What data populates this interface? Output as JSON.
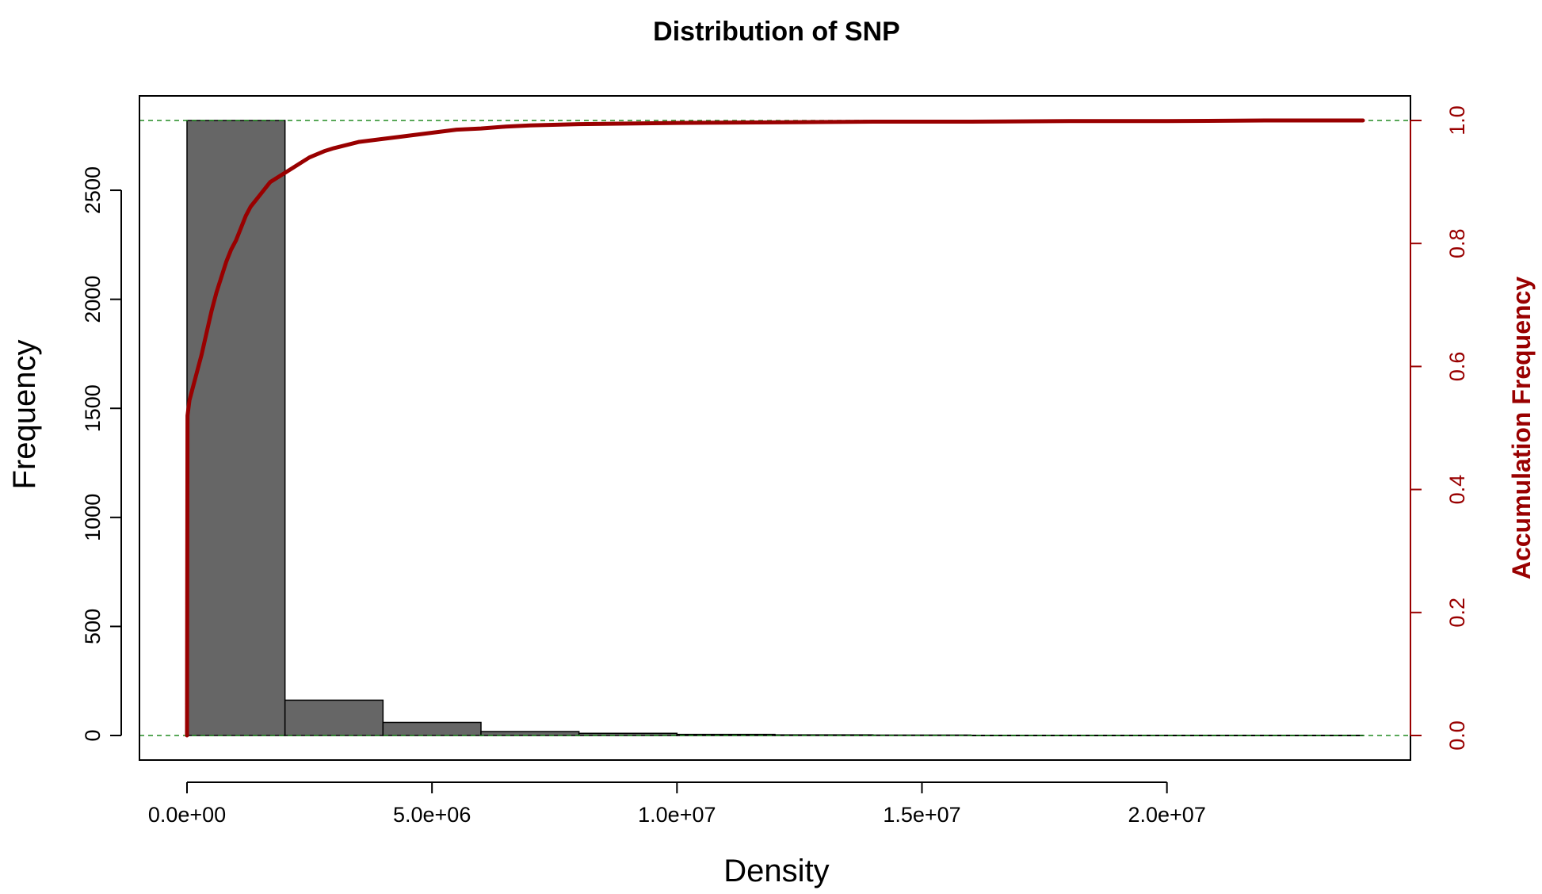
{
  "chart_data": {
    "type": "bar",
    "title": "Distribution of SNP",
    "xlabel": "Density",
    "ylabel": "Frequency",
    "y2label": "Accumulation Frequency",
    "xlim": [
      0,
      24000000
    ],
    "ylim": [
      0,
      2820
    ],
    "y2lim": [
      0,
      1
    ],
    "x_ticks": [
      0,
      5000000,
      10000000,
      15000000,
      20000000
    ],
    "x_tick_labels": [
      "0.0e+00",
      "5.0e+06",
      "1.0e+07",
      "1.5e+07",
      "2.0e+07"
    ],
    "y_ticks": [
      0,
      500,
      1000,
      1500,
      2000,
      2500
    ],
    "y_tick_labels": [
      "0",
      "500",
      "1000",
      "1500",
      "2000",
      "2500"
    ],
    "y2_ticks": [
      0,
      0.2,
      0.4,
      0.6,
      0.8,
      1.0
    ],
    "y2_tick_labels": [
      "0.0",
      "0.2",
      "0.4",
      "0.6",
      "0.8",
      "1.0"
    ],
    "bins": [
      {
        "start": 0,
        "end": 2000000,
        "count": 2820
      },
      {
        "start": 2000000,
        "end": 4000000,
        "count": 162
      },
      {
        "start": 4000000,
        "end": 6000000,
        "count": 60
      },
      {
        "start": 6000000,
        "end": 8000000,
        "count": 18
      },
      {
        "start": 8000000,
        "end": 10000000,
        "count": 10
      },
      {
        "start": 10000000,
        "end": 12000000,
        "count": 5
      },
      {
        "start": 12000000,
        "end": 14000000,
        "count": 3
      },
      {
        "start": 14000000,
        "end": 16000000,
        "count": 2
      },
      {
        "start": 16000000,
        "end": 18000000,
        "count": 1
      },
      {
        "start": 18000000,
        "end": 20000000,
        "count": 1
      },
      {
        "start": 20000000,
        "end": 22000000,
        "count": 1
      },
      {
        "start": 22000000,
        "end": 24000000,
        "count": 1
      }
    ],
    "cumulative_series": {
      "x": [
        0,
        10000,
        50000,
        100000,
        200000,
        300000,
        400000,
        500000,
        600000,
        700000,
        800000,
        900000,
        1000000,
        1100000,
        1200000,
        1300000,
        1400000,
        1500000,
        1600000,
        1700000,
        1800000,
        2000000,
        2200000,
        2500000,
        2800000,
        3000000,
        3500000,
        4000000,
        4500000,
        5000000,
        5500000,
        6000000,
        6500000,
        7000000,
        8000000,
        9000000,
        10000000,
        12000000,
        14000000,
        16000000,
        18000000,
        20000000,
        22000000,
        24000000
      ],
      "y": [
        0,
        0.52,
        0.545,
        0.56,
        0.59,
        0.62,
        0.655,
        0.69,
        0.72,
        0.745,
        0.77,
        0.79,
        0.805,
        0.825,
        0.845,
        0.86,
        0.87,
        0.88,
        0.89,
        0.9,
        0.905,
        0.915,
        0.925,
        0.94,
        0.95,
        0.955,
        0.965,
        0.97,
        0.975,
        0.98,
        0.985,
        0.987,
        0.99,
        0.992,
        0.994,
        0.995,
        0.996,
        0.997,
        0.998,
        0.998,
        0.999,
        0.999,
        1.0,
        1.0
      ],
      "color": "#990000"
    },
    "reference_lines": {
      "y2": [
        0,
        1
      ],
      "color": "#228B22",
      "style": "dashed"
    },
    "bar_color": "#666666",
    "grid": false
  }
}
